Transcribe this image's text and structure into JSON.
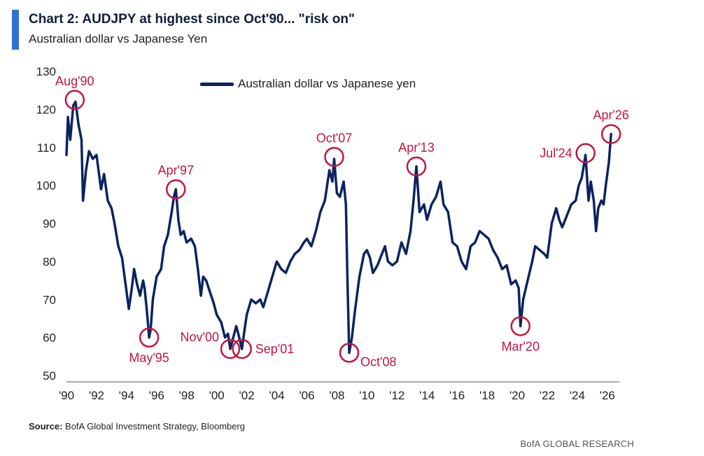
{
  "header": {
    "title": "Chart 2: AUDJPY at highest since Oct'90... \"risk on\"",
    "subtitle": "Australian dollar vs Japanese Yen",
    "accent_color": "#2f6fd1"
  },
  "footer": {
    "source_label": "Source:",
    "source_text": "BofA Global Investment Strategy, Bloomberg",
    "branding": "BofA GLOBAL RESEARCH"
  },
  "chart_data": {
    "type": "line",
    "title": "",
    "xlabel": "",
    "ylabel": "",
    "ylim": [
      50,
      130
    ],
    "xlim": [
      1990.0,
      2026.8
    ],
    "y_ticks": [
      50,
      60,
      70,
      80,
      90,
      100,
      110,
      120,
      130
    ],
    "x_ticks": [
      {
        "value": 1990,
        "label": "'90"
      },
      {
        "value": 1992,
        "label": "'92"
      },
      {
        "value": 1994,
        "label": "'94"
      },
      {
        "value": 1996,
        "label": "'96"
      },
      {
        "value": 1998,
        "label": "'98"
      },
      {
        "value": 2000,
        "label": "'00"
      },
      {
        "value": 2002,
        "label": "'02"
      },
      {
        "value": 2004,
        "label": "'04"
      },
      {
        "value": 2006,
        "label": "'06"
      },
      {
        "value": 2008,
        "label": "'08"
      },
      {
        "value": 2010,
        "label": "'10"
      },
      {
        "value": 2012,
        "label": "'12"
      },
      {
        "value": 2014,
        "label": "'14"
      },
      {
        "value": 2016,
        "label": "'16"
      },
      {
        "value": 2018,
        "label": "'18"
      },
      {
        "value": 2020,
        "label": "'20"
      },
      {
        "value": 2022,
        "label": "'22"
      },
      {
        "value": 2024,
        "label": "'24"
      },
      {
        "value": 2026,
        "label": "'26"
      }
    ],
    "grid": false,
    "legend_position": "top-center",
    "series": [
      {
        "name": "Australian dollar vs Japanese yen",
        "color": "#0b2460",
        "points": [
          [
            1990.0,
            108
          ],
          [
            1990.1,
            118
          ],
          [
            1990.25,
            112
          ],
          [
            1990.45,
            121
          ],
          [
            1990.6,
            122
          ],
          [
            1990.8,
            116
          ],
          [
            1991.0,
            112
          ],
          [
            1991.1,
            96
          ],
          [
            1991.3,
            104
          ],
          [
            1991.5,
            109
          ],
          [
            1991.75,
            107
          ],
          [
            1992.0,
            108
          ],
          [
            1992.3,
            99
          ],
          [
            1992.5,
            103
          ],
          [
            1992.75,
            96
          ],
          [
            1993.0,
            94
          ],
          [
            1993.2,
            90
          ],
          [
            1993.45,
            84
          ],
          [
            1993.7,
            81
          ],
          [
            1993.9,
            75
          ],
          [
            1994.0,
            72
          ],
          [
            1994.15,
            67.5
          ],
          [
            1994.35,
            73
          ],
          [
            1994.5,
            78
          ],
          [
            1994.7,
            74
          ],
          [
            1994.9,
            71
          ],
          [
            1995.1,
            75
          ],
          [
            1995.2,
            73
          ],
          [
            1995.35,
            67
          ],
          [
            1995.5,
            60
          ],
          [
            1995.6,
            62
          ],
          [
            1995.75,
            70
          ],
          [
            1996.0,
            76
          ],
          [
            1996.3,
            78
          ],
          [
            1996.5,
            84
          ],
          [
            1996.75,
            87
          ],
          [
            1997.0,
            93
          ],
          [
            1997.15,
            97
          ],
          [
            1997.28,
            99
          ],
          [
            1997.45,
            91
          ],
          [
            1997.6,
            87
          ],
          [
            1997.8,
            88
          ],
          [
            1998.0,
            85
          ],
          [
            1998.3,
            86
          ],
          [
            1998.55,
            84
          ],
          [
            1998.75,
            78
          ],
          [
            1998.95,
            71
          ],
          [
            1999.1,
            76
          ],
          [
            1999.3,
            75
          ],
          [
            1999.55,
            72
          ],
          [
            1999.8,
            69
          ],
          [
            2000.0,
            66
          ],
          [
            2000.3,
            64
          ],
          [
            2000.55,
            60
          ],
          [
            2000.75,
            61
          ],
          [
            2000.9,
            57
          ],
          [
            2001.1,
            60
          ],
          [
            2001.3,
            63
          ],
          [
            2001.5,
            60
          ],
          [
            2001.68,
            57
          ],
          [
            2001.85,
            62
          ],
          [
            2002.0,
            66
          ],
          [
            2002.3,
            70
          ],
          [
            2002.6,
            69
          ],
          [
            2002.9,
            70
          ],
          [
            2003.1,
            68
          ],
          [
            2003.4,
            72
          ],
          [
            2003.7,
            76
          ],
          [
            2004.0,
            80
          ],
          [
            2004.3,
            78
          ],
          [
            2004.6,
            77
          ],
          [
            2004.9,
            80
          ],
          [
            2005.2,
            82
          ],
          [
            2005.5,
            83
          ],
          [
            2005.8,
            85
          ],
          [
            2006.0,
            86
          ],
          [
            2006.3,
            84
          ],
          [
            2006.6,
            88
          ],
          [
            2006.9,
            93
          ],
          [
            2007.2,
            96
          ],
          [
            2007.5,
            104
          ],
          [
            2007.7,
            101
          ],
          [
            2007.82,
            107
          ],
          [
            2008.0,
            98
          ],
          [
            2008.2,
            97
          ],
          [
            2008.45,
            101
          ],
          [
            2008.6,
            95
          ],
          [
            2008.7,
            76
          ],
          [
            2008.82,
            56
          ],
          [
            2009.0,
            60
          ],
          [
            2009.2,
            67
          ],
          [
            2009.5,
            76
          ],
          [
            2009.8,
            82
          ],
          [
            2010.0,
            83
          ],
          [
            2010.2,
            81
          ],
          [
            2010.4,
            77
          ],
          [
            2010.7,
            79
          ],
          [
            2011.0,
            82
          ],
          [
            2011.2,
            84
          ],
          [
            2011.4,
            80
          ],
          [
            2011.7,
            79
          ],
          [
            2012.0,
            80
          ],
          [
            2012.3,
            85
          ],
          [
            2012.6,
            82
          ],
          [
            2012.9,
            88
          ],
          [
            2013.1,
            96
          ],
          [
            2013.29,
            105
          ],
          [
            2013.5,
            93
          ],
          [
            2013.8,
            95
          ],
          [
            2014.0,
            91
          ],
          [
            2014.3,
            95
          ],
          [
            2014.6,
            97
          ],
          [
            2014.9,
            101
          ],
          [
            2015.1,
            95
          ],
          [
            2015.4,
            93
          ],
          [
            2015.7,
            85
          ],
          [
            2016.0,
            84
          ],
          [
            2016.3,
            80
          ],
          [
            2016.6,
            78
          ],
          [
            2016.9,
            84
          ],
          [
            2017.2,
            85
          ],
          [
            2017.5,
            88
          ],
          [
            2017.8,
            87
          ],
          [
            2018.1,
            86
          ],
          [
            2018.4,
            83
          ],
          [
            2018.7,
            81
          ],
          [
            2019.0,
            78
          ],
          [
            2019.3,
            79
          ],
          [
            2019.6,
            74
          ],
          [
            2019.9,
            75
          ],
          [
            2020.1,
            73
          ],
          [
            2020.22,
            63
          ],
          [
            2020.4,
            70
          ],
          [
            2020.7,
            75
          ],
          [
            2021.0,
            80
          ],
          [
            2021.2,
            84
          ],
          [
            2021.5,
            83
          ],
          [
            2021.8,
            82
          ],
          [
            2022.0,
            81
          ],
          [
            2022.3,
            90
          ],
          [
            2022.6,
            94
          ],
          [
            2022.8,
            91
          ],
          [
            2023.0,
            89
          ],
          [
            2023.3,
            92
          ],
          [
            2023.6,
            95
          ],
          [
            2023.9,
            96
          ],
          [
            2024.1,
            100
          ],
          [
            2024.3,
            102
          ],
          [
            2024.55,
            108
          ],
          [
            2024.75,
            96
          ],
          [
            2024.9,
            101
          ],
          [
            2025.1,
            96
          ],
          [
            2025.25,
            88
          ],
          [
            2025.4,
            94
          ],
          [
            2025.6,
            96
          ],
          [
            2025.75,
            95
          ],
          [
            2025.9,
            100
          ],
          [
            2026.1,
            106
          ],
          [
            2026.25,
            113.5
          ]
        ]
      }
    ],
    "annotations": [
      {
        "label": "Aug'90",
        "x": 1990.55,
        "y": 122.5,
        "label_pos": "above"
      },
      {
        "label": "May'95",
        "x": 1995.5,
        "y": 60,
        "label_pos": "below"
      },
      {
        "label": "Apr'97",
        "x": 1997.28,
        "y": 99,
        "label_pos": "above"
      },
      {
        "label": "Nov'00",
        "x": 2000.9,
        "y": 57,
        "label_pos": "upper-left"
      },
      {
        "label": "Sep'01",
        "x": 2001.68,
        "y": 57,
        "label_pos": "right"
      },
      {
        "label": "Oct'07",
        "x": 2007.82,
        "y": 107.5,
        "label_pos": "above"
      },
      {
        "label": "Oct'08",
        "x": 2008.82,
        "y": 56,
        "label_pos": "lower-right"
      },
      {
        "label": "Apr'13",
        "x": 2013.29,
        "y": 105,
        "label_pos": "above"
      },
      {
        "label": "Mar'20",
        "x": 2020.22,
        "y": 63,
        "label_pos": "below"
      },
      {
        "label": "Jul'24",
        "x": 2024.55,
        "y": 108.5,
        "label_pos": "left"
      },
      {
        "label": "Apr'26",
        "x": 2026.25,
        "y": 113.5,
        "label_pos": "above"
      }
    ],
    "annotation_color": "#c0163f"
  }
}
